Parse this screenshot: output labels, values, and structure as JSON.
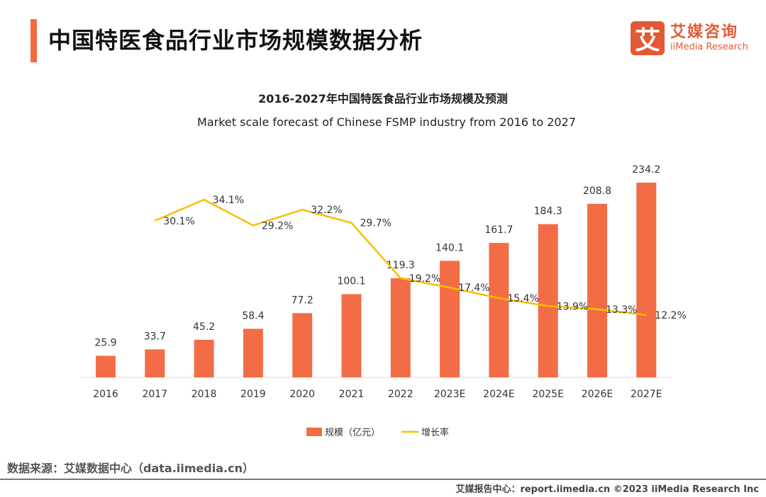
{
  "header": {
    "title": "中国特医食品行业市场规模数据分析",
    "logo_cn": "艾媒咨询",
    "logo_en": "iiMedia Research",
    "logo_mark": "艾"
  },
  "chart_data": {
    "type": "bar+line",
    "title": "2016-2027年中国特医食品行业市场规模及预测",
    "subtitle": "Market scale forecast of Chinese FSMP industry from 2016 to 2027",
    "categories": [
      "2016",
      "2017",
      "2018",
      "2019",
      "2020",
      "2021",
      "2022",
      "2023E",
      "2024E",
      "2025E",
      "2026E",
      "2027E"
    ],
    "series": [
      {
        "name": "规模（亿元）",
        "type": "bar",
        "color": "#f26d45",
        "values": [
          25.9,
          33.7,
          45.2,
          58.4,
          77.2,
          100.1,
          119.3,
          140.1,
          161.7,
          184.3,
          208.8,
          234.2
        ],
        "labels": [
          "25.9",
          "33.7",
          "45.2",
          "58.4",
          "77.2",
          "100.1",
          "119.3",
          "140.1",
          "161.7",
          "184.3",
          "208.8",
          "234.2"
        ]
      },
      {
        "name": "增长率",
        "type": "line",
        "color": "#f5c000",
        "values": [
          null,
          30.1,
          34.1,
          29.2,
          32.2,
          29.7,
          19.2,
          17.4,
          15.4,
          13.9,
          13.3,
          12.2
        ],
        "labels": [
          "",
          "30.1%",
          "34.1%",
          "29.2%",
          "32.2%",
          "29.7%",
          "19.2%",
          "17.4%",
          "15.4%",
          "13.9%",
          "13.3%",
          "12.2%"
        ]
      }
    ],
    "legend": "bottom",
    "grid": false
  },
  "source": "数据来源：艾媒数据中心（data.iimedia.cn）",
  "footer": "艾媒报告中心：report.iimedia.cn   ©2023  iiMedia Research  Inc"
}
